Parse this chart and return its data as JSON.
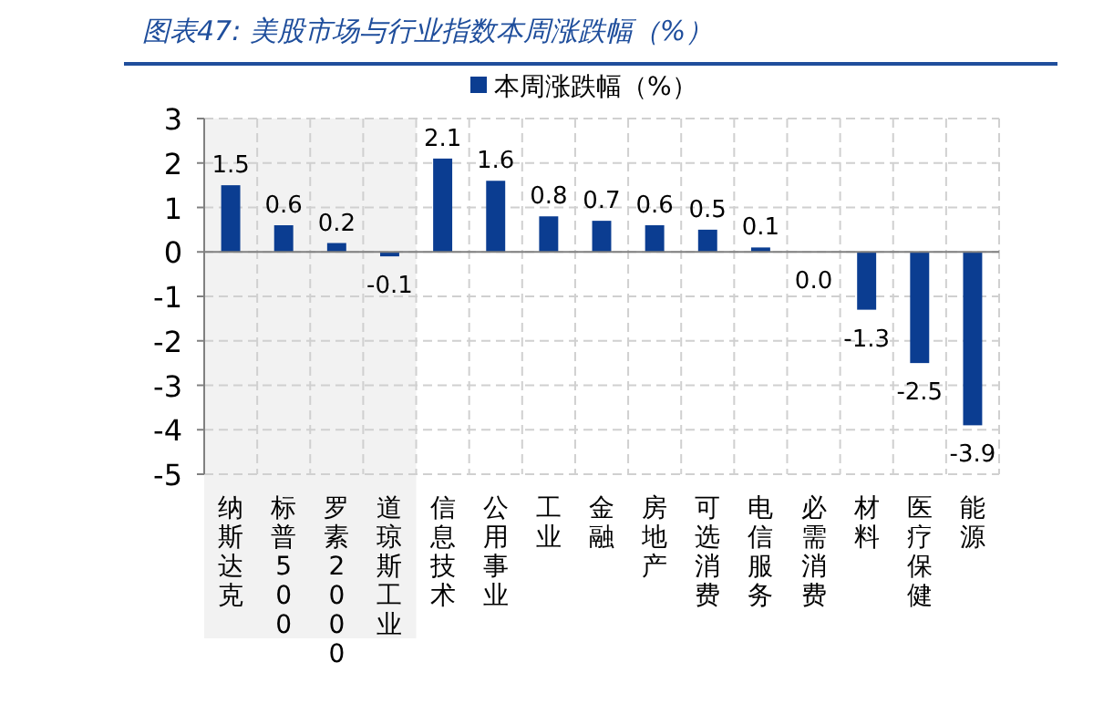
{
  "chart_data": {
    "type": "bar",
    "title": "图表47: 美股市场与行业指数本周涨跌幅（%）",
    "categories": [
      "纳斯达克",
      "标普500",
      "罗素2000",
      "道琼斯工业",
      "信息技术",
      "公用事业",
      "工业",
      "金融",
      "房地产",
      "可选消费",
      "电信服务",
      "必需消费",
      "材料",
      "医疗保健",
      "能源"
    ],
    "series": [
      {
        "name": "本周涨跌幅（%）",
        "color": "#0b3d91",
        "values": [
          1.5,
          0.6,
          0.2,
          -0.1,
          2.1,
          1.6,
          0.8,
          0.7,
          0.6,
          0.5,
          0.1,
          0.0,
          -1.3,
          -2.5,
          -3.9
        ],
        "value_labels": [
          "1.5",
          "0.6",
          "0.2",
          "-0.1",
          "2.1",
          "1.6",
          "0.8",
          "0.7",
          "0.6",
          "0.5",
          "0.1",
          "0.0",
          "-1.3",
          "-2.5",
          "-3.9"
        ]
      }
    ],
    "ylim": [
      -5,
      3
    ],
    "yticks": [
      -5,
      -4,
      -3,
      -2,
      -1,
      0,
      1,
      2,
      3
    ],
    "bands": [
      {
        "axis": "x",
        "from": "纳斯达克",
        "to": "道琼斯工业",
        "color": "#f2f2f2"
      }
    ],
    "grid": true,
    "legend": "top"
  }
}
